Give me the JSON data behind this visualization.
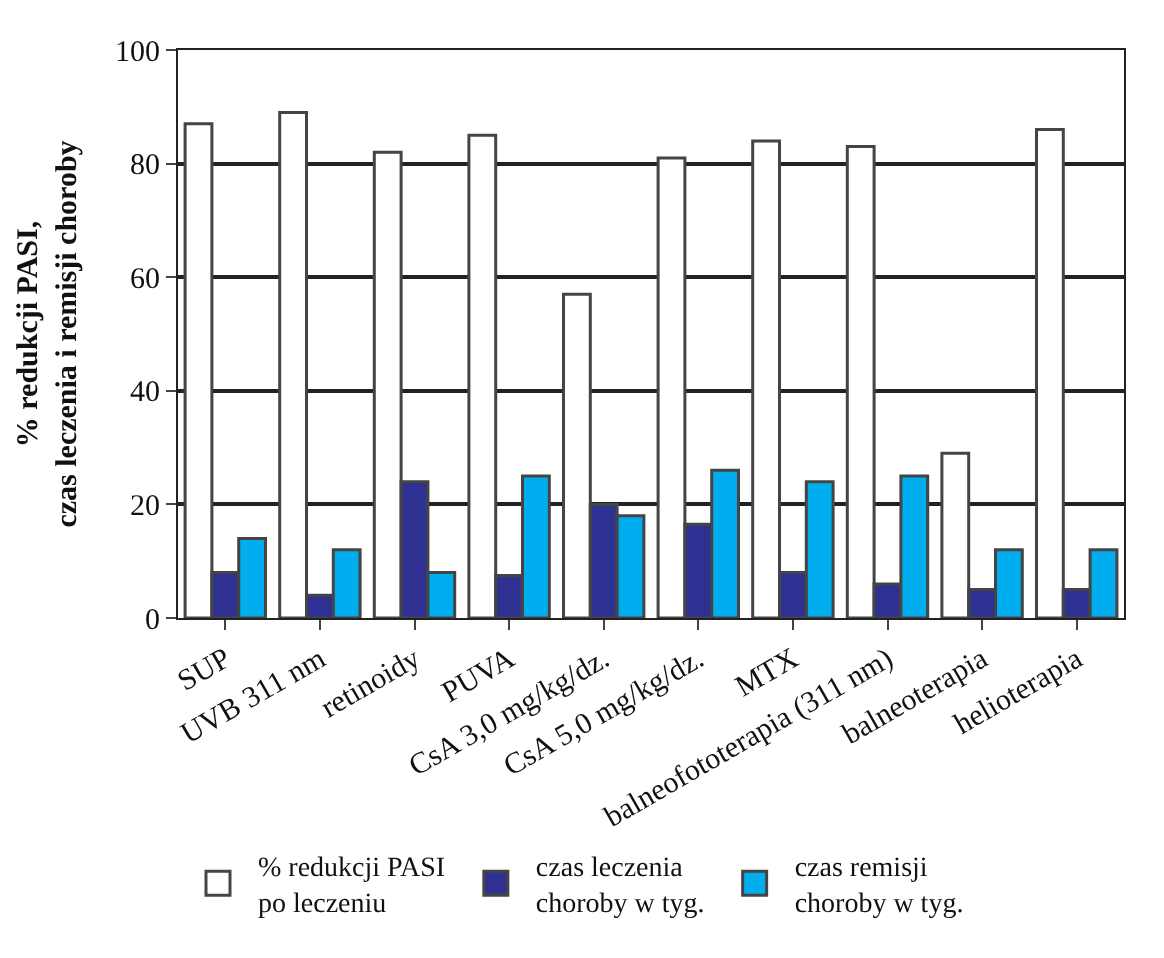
{
  "chart_data": {
    "type": "bar",
    "ylabel": "% redukcji PASI,\nczas leczenia i remisji choroby",
    "categories": [
      "SUP",
      "UVB 311 nm",
      "retinoidy",
      "PUVA",
      "CsA 3,0 mg/kg/dz.",
      "CsA 5,0 mg/kg/dz.",
      "MTX",
      "balneofototerapia (311 nm)",
      "balneoterapia",
      "helioterapia"
    ],
    "series": [
      {
        "name": "% redukcji PASI\npo leczeniu",
        "color": "#ffffff",
        "values": [
          87,
          89,
          82,
          85,
          57,
          81,
          84,
          83,
          29,
          86
        ]
      },
      {
        "name": "czas leczenia\nchoroby w tyg.",
        "color": "#2e3192",
        "values": [
          8,
          4,
          24,
          7.5,
          20,
          16.5,
          8,
          6,
          5,
          5
        ]
      },
      {
        "name": "czas remisji\nchoroby w tyg.",
        "color": "#00aeef",
        "values": [
          14,
          12,
          8,
          25,
          18,
          26,
          24,
          25,
          12,
          12
        ]
      }
    ],
    "ylim": [
      0,
      100
    ],
    "yticks": [
      0,
      20,
      40,
      60,
      80,
      100
    ],
    "grid": "y",
    "legend": "bottom"
  }
}
